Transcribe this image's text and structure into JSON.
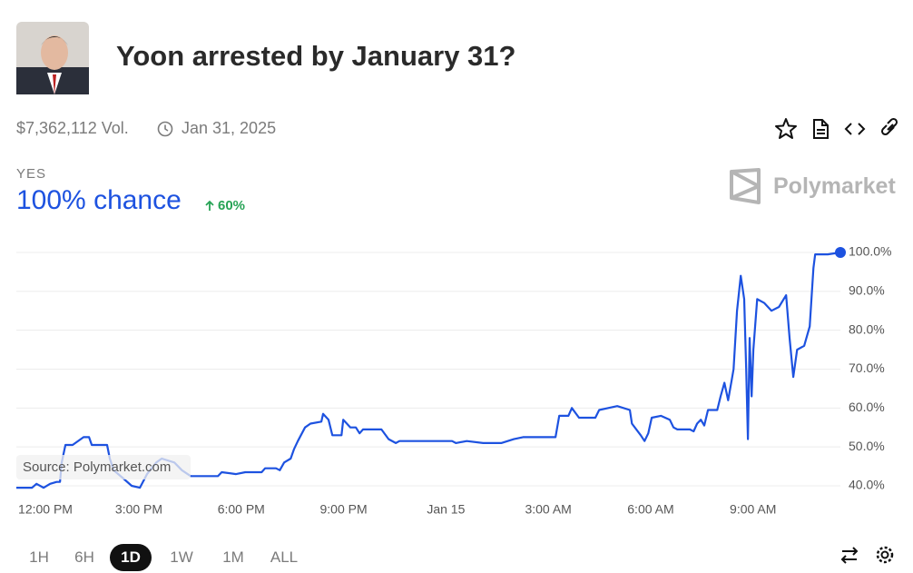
{
  "header": {
    "title": "Yoon arrested by January 31?",
    "volume": "$7,362,112 Vol.",
    "end_date": "Jan 31, 2025"
  },
  "outcome": {
    "label": "YES",
    "chance": "100% chance",
    "change": "60%"
  },
  "brand": "Polymarket",
  "source": "Source: Polymarket.com",
  "ranges": [
    "1H",
    "6H",
    "1D",
    "1W",
    "1M",
    "ALL"
  ],
  "active_range": "1D",
  "chart_data": {
    "type": "line",
    "color": "#1d52e0",
    "grid": true,
    "x": [
      -0.59,
      -0.13,
      0,
      0.21,
      0.4,
      0.59,
      0.69,
      0.74,
      0.85,
      1.06,
      1.38,
      1.54,
      1.62,
      2.07,
      2.15,
      2.26,
      2.53,
      2.79,
      3.03,
      3.24,
      3.51,
      3.67,
      4.04,
      4.26,
      4.52,
      5.32,
      5.43,
      5.85,
      6.12,
      6.6,
      6.7,
      7.02,
      7.13,
      7.26,
      7.45,
      7.55,
      7.66,
      7.87,
      8.03,
      8.35,
      8.4,
      8.56,
      8.67,
      8.94,
      8.99,
      9.2,
      9.36,
      9.47,
      9.57,
      10.11,
      10.32,
      10.53,
      10.64,
      12.18,
      12.29,
      12.61,
      13.09,
      13.62,
      13.99,
      14.26,
      15.21,
      15.32,
      15.59,
      15.69,
      15.9,
      16.38,
      16.49,
      16.76,
      17.02,
      17.39,
      17.45,
      17.71,
      17.82,
      17.93,
      18.03,
      18.3,
      18.56,
      18.67,
      18.78,
      19.15,
      19.26,
      19.36,
      19.47,
      19.57,
      19.68,
      19.95,
      20.05,
      20.16,
      20.27,
      20.37,
      20.43,
      20.53,
      20.64,
      20.74,
      20.8,
      20.85,
      20.9,
      20.96,
      21.01,
      21.12,
      21.33,
      21.54,
      21.76,
      21.97,
      22.07,
      22.18,
      22.29,
      22.5,
      22.66,
      22.77,
      22.82,
      23.19,
      23.56
    ],
    "values": [
      39.5,
      39.5,
      40.5,
      39.5,
      40.5,
      41,
      41,
      46,
      50.5,
      50.5,
      52.5,
      52.5,
      50.5,
      50.5,
      47,
      44,
      42,
      40,
      39.5,
      43,
      46,
      47,
      46,
      44,
      42.5,
      42.5,
      43.5,
      43,
      43.5,
      43.5,
      44.5,
      44.5,
      44,
      46,
      47,
      49.5,
      51.5,
      55,
      56,
      56.5,
      58.5,
      57,
      53,
      53,
      57,
      55,
      55,
      53.5,
      54.5,
      54.5,
      52,
      51,
      51.5,
      51.5,
      51,
      51.5,
      51,
      51,
      52,
      52.5,
      52.5,
      58,
      58,
      60,
      57.5,
      57.5,
      59.5,
      60,
      60.5,
      59.5,
      56,
      53,
      51.5,
      53.5,
      57.5,
      58,
      57,
      55,
      54.5,
      54.5,
      54,
      56,
      57,
      55.5,
      59.5,
      59.5,
      63,
      66.5,
      62,
      67,
      70,
      85,
      94,
      88,
      70,
      52,
      78,
      63,
      75,
      88,
      87,
      85,
      86,
      89,
      78,
      68,
      75,
      76,
      81,
      96,
      99.5,
      99.5,
      100
    ],
    "xlim": [
      -0.59,
      23.56
    ],
    "xticks": [
      {
        "value": 0,
        "label": "12:00 PM"
      },
      {
        "value": 3,
        "label": "3:00 PM"
      },
      {
        "value": 6,
        "label": "6:00 PM"
      },
      {
        "value": 9,
        "label": "9:00 PM"
      },
      {
        "value": 12,
        "label": "Jan 15"
      },
      {
        "value": 15,
        "label": "3:00 AM"
      },
      {
        "value": 18,
        "label": "6:00 AM"
      },
      {
        "value": 21,
        "label": "9:00 AM"
      }
    ],
    "ylim": [
      38,
      100
    ],
    "yticks": [
      {
        "value": 40,
        "label": "40.0%"
      },
      {
        "value": 50,
        "label": "50.0%"
      },
      {
        "value": 60,
        "label": "60.0%"
      },
      {
        "value": 70,
        "label": "70.0%"
      },
      {
        "value": 80,
        "label": "80.0%"
      },
      {
        "value": 90,
        "label": "90.0%"
      },
      {
        "value": 100,
        "label": "100.0%"
      }
    ]
  }
}
